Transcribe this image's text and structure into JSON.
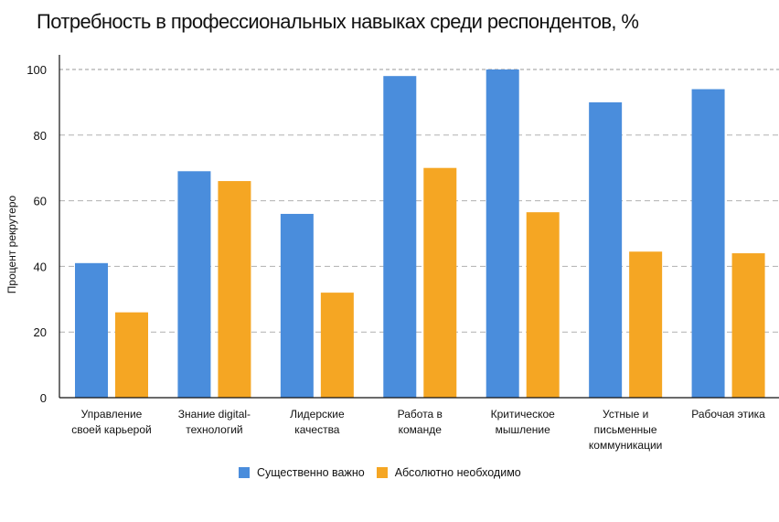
{
  "chart_data": {
    "type": "bar",
    "title": "Потребность в профессиональных навыках среди респондентов, %",
    "xlabel": "",
    "ylabel": "Процент рекрутеро",
    "ylim": [
      0,
      100
    ],
    "yticks": [
      0,
      20,
      40,
      60,
      80,
      100
    ],
    "grid": true,
    "legend_position": "bottom",
    "categories": [
      [
        "Управление",
        "своей карьерой"
      ],
      [
        "Знание digital-",
        "технологий"
      ],
      [
        "Лидерские",
        "качества"
      ],
      [
        "Работа в",
        "команде"
      ],
      [
        "Критическое",
        "мышление"
      ],
      [
        "Устные и",
        "письменные",
        "коммуникации"
      ],
      [
        "Рабочая этика"
      ]
    ],
    "series": [
      {
        "name": "Существенно важно",
        "color": "#4a8ddc",
        "values": [
          41,
          69,
          56,
          98,
          100,
          90,
          94
        ]
      },
      {
        "name": "Абсолютно необходимо",
        "color": "#f5a623",
        "values": [
          26,
          66,
          32,
          70,
          56.5,
          44.5,
          44
        ]
      }
    ]
  }
}
